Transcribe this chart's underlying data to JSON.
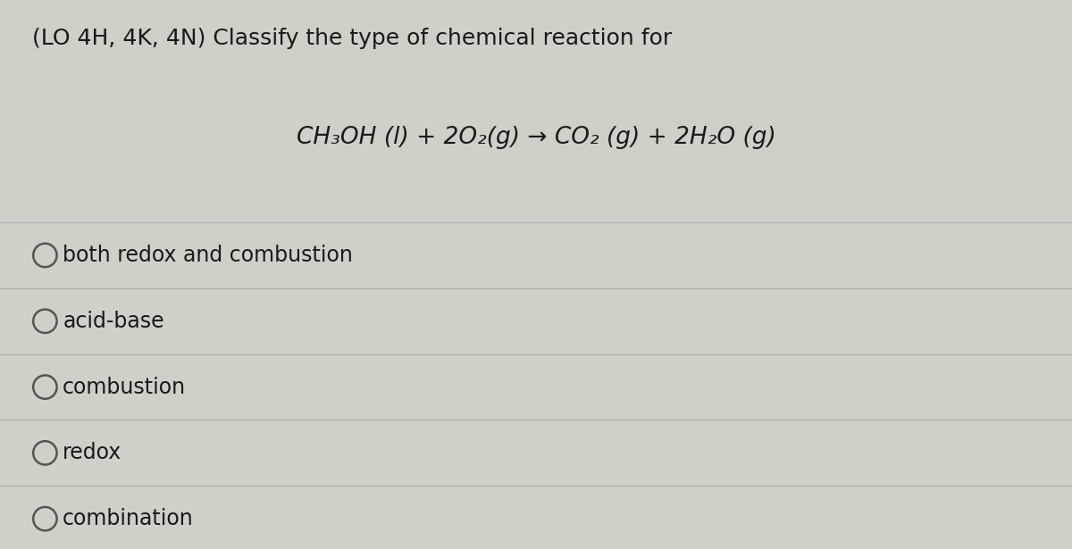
{
  "title_line1": "(LO 4H, 4K, 4N) Classify the type of chemical reaction for",
  "equation": "CH₃OH (l) + 2O₂(g) → CO₂ (g) + 2H₂O (g)",
  "options": [
    "both redox and combustion",
    "acid-base",
    "combustion",
    "redox",
    "combination"
  ],
  "background_color": "#d0cfc8",
  "text_color": "#1a1a1a",
  "line_color": "#b0b0b0",
  "circle_color": "#555555",
  "title_fontsize": 18,
  "equation_fontsize": 19,
  "option_fontsize": 17,
  "fig_width": 12.0,
  "fig_height": 6.15
}
